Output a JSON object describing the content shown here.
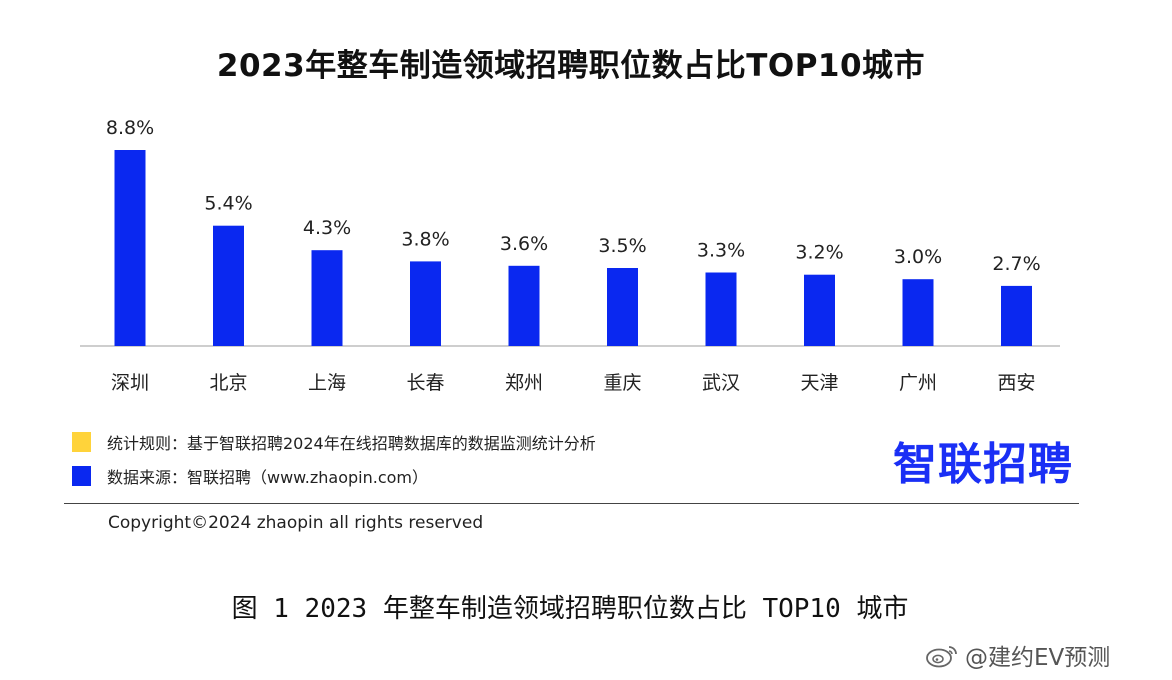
{
  "chart_data": {
    "type": "bar",
    "title": "2023年整车制造领域招聘职位数占比TOP10城市",
    "categories": [
      "深圳",
      "北京",
      "上海",
      "长春",
      "郑州",
      "重庆",
      "武汉",
      "天津",
      "广州",
      "西安"
    ],
    "values": [
      8.8,
      5.4,
      4.3,
      3.8,
      3.6,
      3.5,
      3.3,
      3.2,
      3.0,
      2.7
    ],
    "value_labels": [
      "8.8%",
      "5.4%",
      "4.3%",
      "3.8%",
      "3.6%",
      "3.5%",
      "3.3%",
      "3.2%",
      "3.0%",
      "2.7%"
    ],
    "unit": "%",
    "ylim": [
      0,
      8.8
    ],
    "grid": false,
    "bar_color": "#0a28f0"
  },
  "legend": {
    "rule_text": "统计规则：基于智联招聘2024年在线招聘数据库的数据监测统计分析",
    "rule_color": "#ffd33a",
    "source_text": "数据来源：智联招聘（www.zhaopin.com）",
    "source_color": "#0a28f0"
  },
  "brand": {
    "logo_text": "智联招聘",
    "logo_color": "#1a2ff5"
  },
  "footer": {
    "copyright": "Copyright©2024 zhaopin all rights reserved"
  },
  "caption": "图 1  2023 年整车制造领域招聘职位数占比 TOP10 城市",
  "watermark": {
    "text": "@建约EV预测",
    "icon": "weibo-icon"
  }
}
